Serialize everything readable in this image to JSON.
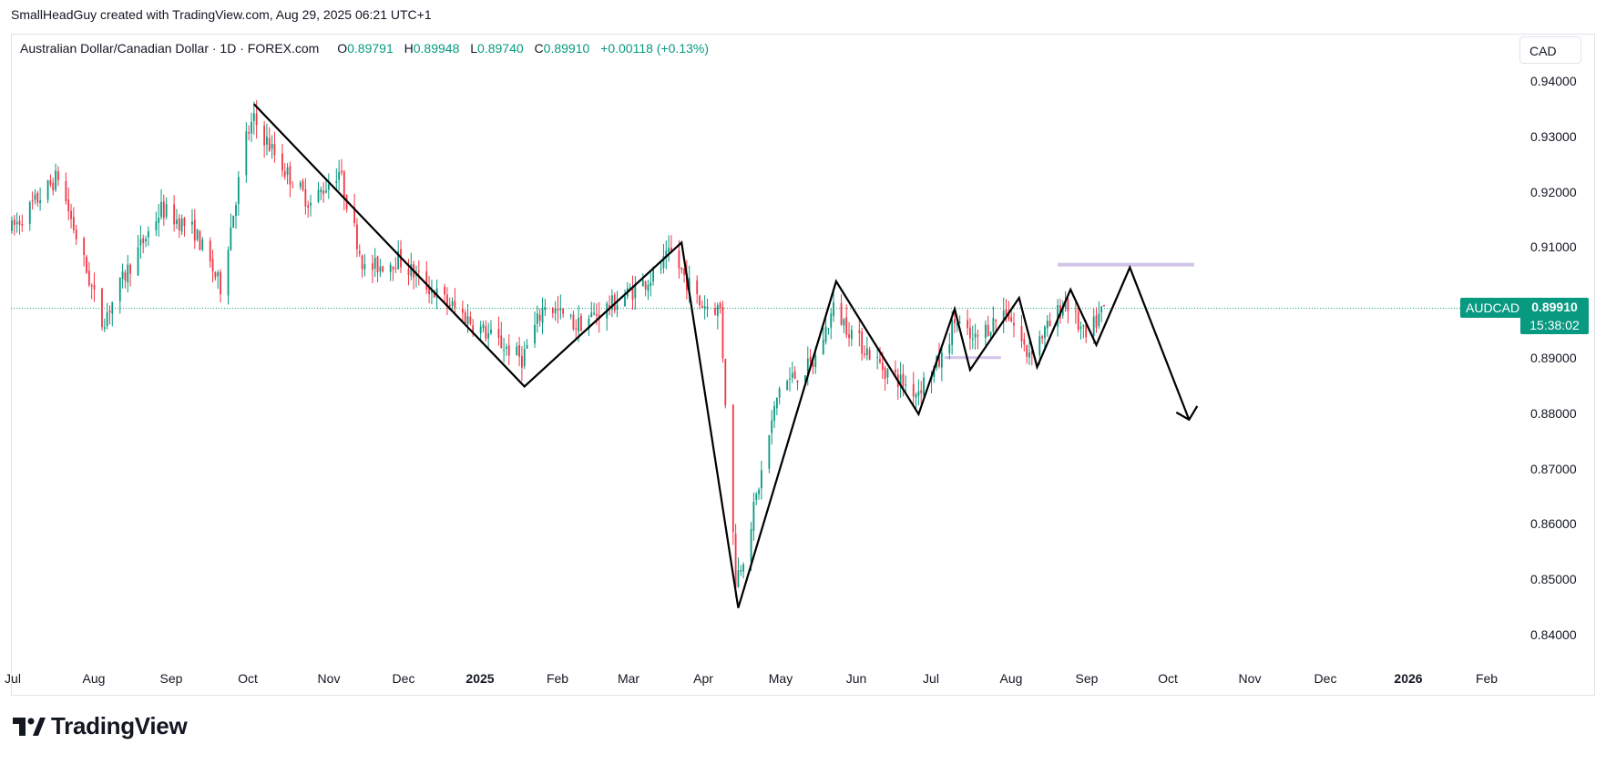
{
  "attribution": "SmallHeadGuy created with TradingView.com, Aug 29, 2025 06:21 UTC+1",
  "legend": {
    "symbol": "Australian Dollar/Canadian Dollar · 1D · FOREX.com",
    "open_label": "O",
    "open": "0.89791",
    "high_label": "H",
    "high": "0.89948",
    "low_label": "L",
    "low": "0.89740",
    "close_label": "C",
    "close": "0.89910",
    "change": "+0.00118 (+0.13%)"
  },
  "currency": "CAD",
  "price_tag": {
    "symbol": "AUDCAD",
    "price": "0.89910",
    "countdown": "15:38:02"
  },
  "logo_text": "TradingView",
  "colors": {
    "up": "#089981",
    "down": "#f23645",
    "pattern": "#000000",
    "resistance": "#d1c4e9"
  },
  "chart_data": {
    "type": "candlestick",
    "title": "Australian Dollar/Canadian Dollar · 1D · FOREX.com",
    "ylim": [
      0.8345,
      0.9445
    ],
    "y_ticks": [
      "0.94000",
      "0.93000",
      "0.92000",
      "0.91000",
      "0.90000",
      "0.89000",
      "0.88000",
      "0.87000",
      "0.86000",
      "0.85000",
      "0.84000"
    ],
    "x_ticks": [
      {
        "label": "Jul",
        "bold": false
      },
      {
        "label": "Aug",
        "bold": false
      },
      {
        "label": "Sep",
        "bold": false
      },
      {
        "label": "Oct",
        "bold": false
      },
      {
        "label": "Nov",
        "bold": false
      },
      {
        "label": "Dec",
        "bold": false
      },
      {
        "label": "2025",
        "bold": true
      },
      {
        "label": "Feb",
        "bold": false
      },
      {
        "label": "Mar",
        "bold": false
      },
      {
        "label": "Apr",
        "bold": false
      },
      {
        "label": "May",
        "bold": false
      },
      {
        "label": "Jun",
        "bold": false
      },
      {
        "label": "Jul",
        "bold": false
      },
      {
        "label": "Aug",
        "bold": false
      },
      {
        "label": "Sep",
        "bold": false
      },
      {
        "label": "Oct",
        "bold": false
      },
      {
        "label": "Nov",
        "bold": false
      },
      {
        "label": "Dec",
        "bold": false
      },
      {
        "label": "2026",
        "bold": true
      },
      {
        "label": "Feb",
        "bold": false
      }
    ],
    "last_price": 0.8991,
    "price_path_knots": [
      [
        "2024-07-01",
        0.9135
      ],
      [
        "2024-07-19",
        0.923
      ],
      [
        "2024-08-05",
        0.8965
      ],
      [
        "2024-08-16",
        0.907
      ],
      [
        "2024-08-28",
        0.917
      ],
      [
        "2024-09-10",
        0.913
      ],
      [
        "2024-09-20",
        0.903
      ],
      [
        "2024-09-30",
        0.93
      ],
      [
        "2024-10-03",
        0.933
      ],
      [
        "2024-10-15",
        0.924
      ],
      [
        "2024-10-25",
        0.918
      ],
      [
        "2024-11-05",
        0.924
      ],
      [
        "2024-11-15",
        0.906
      ],
      [
        "2024-11-28",
        0.908
      ],
      [
        "2024-12-12",
        0.902
      ],
      [
        "2024-12-31",
        0.895
      ],
      [
        "2025-01-15",
        0.89
      ],
      [
        "2025-01-24",
        0.9
      ],
      [
        "2025-02-05",
        0.896
      ],
      [
        "2025-02-20",
        0.9
      ],
      [
        "2025-03-07",
        0.905
      ],
      [
        "2025-03-14",
        0.909
      ],
      [
        "2025-03-25",
        0.9
      ],
      [
        "2025-04-02",
        0.899
      ],
      [
        "2025-04-08",
        0.85
      ],
      [
        "2025-04-12",
        0.856
      ],
      [
        "2025-04-25",
        0.885
      ],
      [
        "2025-05-08",
        0.889
      ],
      [
        "2025-05-16",
        0.899
      ],
      [
        "2025-05-26",
        0.893
      ],
      [
        "2025-06-05",
        0.888
      ],
      [
        "2025-06-17",
        0.884
      ],
      [
        "2025-06-27",
        0.89
      ],
      [
        "2025-07-02",
        0.897
      ],
      [
        "2025-07-09",
        0.893
      ],
      [
        "2025-07-22",
        0.899
      ],
      [
        "2025-07-30",
        0.891
      ],
      [
        "2025-08-08",
        0.896
      ],
      [
        "2025-08-14",
        0.9005
      ],
      [
        "2025-08-22",
        0.8935
      ],
      [
        "2025-08-29",
        0.8991
      ]
    ],
    "pattern_line": [
      [
        "2024-10-03",
        0.936
      ],
      [
        "2025-01-16",
        0.885
      ],
      [
        "2025-03-18",
        0.911
      ],
      [
        "2025-04-09",
        0.845
      ],
      [
        "2025-05-17",
        0.904
      ],
      [
        "2025-06-18",
        0.88
      ],
      [
        "2025-07-02",
        0.899
      ],
      [
        "2025-07-08",
        0.888
      ],
      [
        "2025-07-27",
        0.901
      ],
      [
        "2025-08-03",
        0.8885
      ],
      [
        "2025-08-16",
        0.9025
      ],
      [
        "2025-08-26",
        0.8925
      ],
      [
        "2025-09-08",
        0.9065
      ],
      [
        "2025-10-01",
        0.879
      ]
    ],
    "resistance_zone": {
      "start": "2025-08-11",
      "end": "2025-10-03",
      "price": 0.907
    },
    "support_zone": {
      "start": "2025-06-28",
      "end": "2025-07-20",
      "price": 0.8902
    }
  }
}
